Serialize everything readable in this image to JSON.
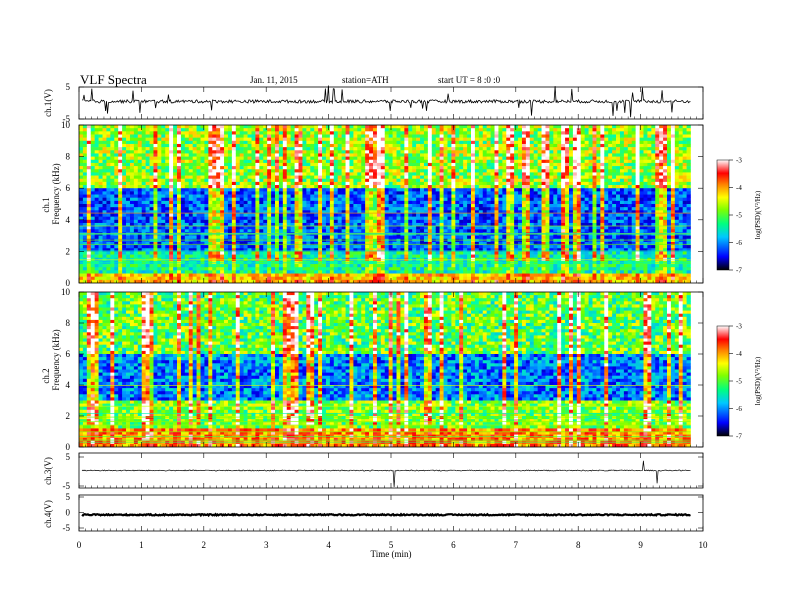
{
  "header": {
    "title": "VLF  Spectra",
    "date": "Jan. 11, 2015",
    "station": "station=ATH",
    "start_ut": "start  UT  =   8  :0  :0"
  },
  "colors": {
    "background": "#ffffff",
    "axes": "#000000",
    "colormap": [
      "#000055",
      "#0000ff",
      "#00aaff",
      "#00ffaa",
      "#66ff00",
      "#ffff00",
      "#ff8800",
      "#ff0000",
      "#ffffff"
    ]
  },
  "panels": {
    "ch1_waveform": {
      "ylabel": "ch.1(V)",
      "ticks": [
        "5",
        "-5"
      ]
    },
    "ch1_spectrogram": {
      "ylabel_top": "ch.1",
      "ylabel": "Frequency  (kHz)",
      "ticks": [
        "10",
        "8",
        "6",
        "4",
        "2",
        "0"
      ]
    },
    "ch2_spectrogram": {
      "ylabel_top": "ch.2",
      "ylabel": "Frequency  (kHz)",
      "ticks": [
        "10",
        "8",
        "6",
        "4",
        "2",
        "0"
      ]
    },
    "ch3_waveform": {
      "ylabel": "ch.3(V)",
      "ticks": [
        "5",
        "-5"
      ]
    },
    "ch4_waveform": {
      "ylabel": "ch.4(V)",
      "ticks": [
        "5",
        "0",
        "-5"
      ]
    }
  },
  "colorbars": [
    {
      "label": "log(PSD)(V²/Hz)",
      "ticks": [
        "-3",
        "-4",
        "-5",
        "-6",
        "-7"
      ]
    },
    {
      "label": "log(PSD)(V²/Hz)",
      "ticks": [
        "-3",
        "-4",
        "-5",
        "-6",
        "-7"
      ]
    }
  ],
  "xaxis": {
    "label": "Time  (min)",
    "ticks": [
      "0",
      "1",
      "2",
      "3",
      "4",
      "5",
      "6",
      "7",
      "8",
      "9",
      "10"
    ]
  },
  "chart_data": {
    "type": "heatmap",
    "title": "VLF  Spectra",
    "xlabel": "Time  (min)",
    "xlim": [
      0,
      10
    ],
    "data_extent_min": 9.8,
    "spectrograms": [
      {
        "channel": "ch.1",
        "ylabel": "Frequency  (kHz)",
        "ylim": [
          0,
          10
        ],
        "zlabel": "log(PSD)(V²/Hz)",
        "zlim": [
          -7,
          -3
        ]
      },
      {
        "channel": "ch.2",
        "ylabel": "Frequency  (kHz)",
        "ylim": [
          0,
          10
        ],
        "zlabel": "log(PSD)(V²/Hz)",
        "zlim": [
          -7,
          -3
        ]
      }
    ],
    "waveforms": [
      {
        "channel": "ch.1",
        "ylabel": "ch.1(V)",
        "ylim": [
          -5,
          5
        ],
        "baseline": 0.5
      },
      {
        "channel": "ch.3",
        "ylabel": "ch.3(V)",
        "ylim": [
          -5,
          5
        ],
        "baseline": 0
      },
      {
        "channel": "ch.4",
        "ylabel": "ch.4(V)",
        "ylim": [
          -5,
          5
        ],
        "baseline": -0.5
      }
    ]
  }
}
